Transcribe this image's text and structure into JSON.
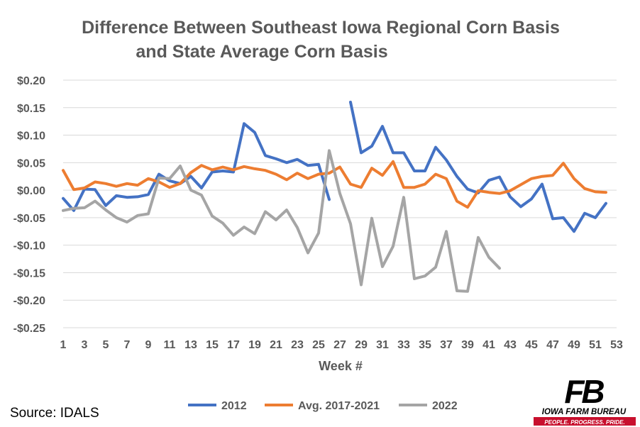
{
  "chart_data": {
    "type": "line",
    "title_line1": "Difference Between Southeast Iowa Regional Corn Basis",
    "title_line2": "and State Average Corn Basis",
    "xlabel": "Week #",
    "ylabel": "",
    "xlim": [
      1,
      53
    ],
    "ylim": [
      -0.25,
      0.2
    ],
    "grid": true,
    "legend_position": "bottom",
    "x_ticks": [
      1,
      3,
      5,
      7,
      9,
      11,
      13,
      15,
      17,
      19,
      21,
      23,
      25,
      27,
      29,
      31,
      33,
      35,
      37,
      39,
      41,
      43,
      45,
      47,
      49,
      51,
      53
    ],
    "y_ticks": [
      0.2,
      0.15,
      0.1,
      0.05,
      0.0,
      -0.05,
      -0.1,
      -0.15,
      -0.2,
      -0.25
    ],
    "y_tick_labels": [
      "$0.20",
      "$0.15",
      "$0.10",
      "$0.05",
      "$0.00",
      "-$0.05",
      "-$0.10",
      "-$0.15",
      "-$0.20",
      "-$0.25"
    ],
    "series": [
      {
        "name": "2012",
        "color": "#4472C4",
        "values": [
          -0.015,
          -0.037,
          0.002,
          0.001,
          -0.028,
          -0.01,
          -0.013,
          -0.012,
          -0.008,
          0.029,
          0.017,
          0.012,
          0.025,
          0.004,
          0.033,
          0.035,
          0.033,
          0.121,
          0.105,
          0.063,
          0.057,
          0.05,
          0.056,
          0.045,
          0.047,
          -0.017,
          null,
          0.16,
          0.068,
          0.08,
          0.116,
          0.068,
          0.068,
          0.035,
          0.035,
          0.078,
          0.055,
          0.025,
          0.002,
          -0.005,
          0.018,
          0.024,
          -0.012,
          -0.03,
          -0.016,
          0.011,
          -0.052,
          -0.05,
          -0.075,
          -0.042,
          -0.05,
          -0.024
        ]
      },
      {
        "name": "Avg. 2017-2021",
        "color": "#ED7D31",
        "values": [
          0.036,
          0.001,
          0.004,
          0.015,
          0.012,
          0.007,
          0.012,
          0.009,
          0.021,
          0.015,
          0.005,
          0.012,
          0.032,
          0.045,
          0.037,
          0.042,
          0.037,
          0.043,
          0.039,
          0.036,
          0.029,
          0.019,
          0.031,
          0.021,
          0.029,
          0.031,
          0.042,
          0.011,
          0.005,
          0.04,
          0.027,
          0.052,
          0.005,
          0.005,
          0.011,
          0.029,
          0.021,
          -0.02,
          -0.031,
          -0.001,
          -0.004,
          -0.006,
          -0.001,
          0.01,
          0.021,
          0.025,
          0.027,
          0.049,
          0.021,
          0.003,
          -0.003,
          -0.004
        ]
      },
      {
        "name": "2022",
        "color": "#A5A5A5",
        "values": [
          -0.037,
          -0.033,
          -0.032,
          -0.02,
          -0.036,
          -0.05,
          -0.058,
          -0.046,
          -0.043,
          0.022,
          0.021,
          0.044,
          0.0,
          -0.009,
          -0.047,
          -0.06,
          -0.082,
          -0.067,
          -0.079,
          -0.039,
          -0.054,
          -0.036,
          -0.068,
          -0.114,
          -0.078,
          0.072,
          -0.006,
          -0.061,
          -0.172,
          -0.051,
          -0.139,
          -0.102,
          -0.013,
          -0.161,
          -0.156,
          -0.14,
          -0.075,
          -0.183,
          -0.184,
          -0.086,
          -0.122,
          -0.142
        ]
      }
    ]
  },
  "source_text": "Source: IDALS",
  "logo": {
    "brand_text": "IOWA FARM BUREAU",
    "tagline": "PEOPLE. PROGRESS. PRIDE.",
    "mark_text": "FB",
    "brand_color": "#000000",
    "accent_color": "#C8102E"
  }
}
